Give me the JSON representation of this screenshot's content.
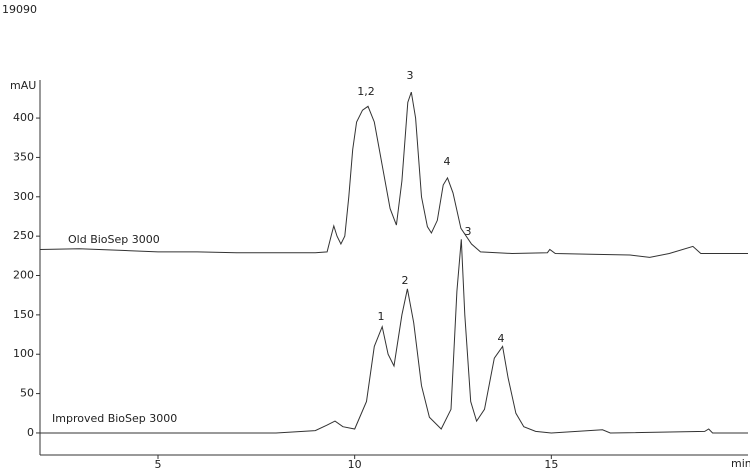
{
  "chart_data": {
    "type": "line",
    "title": "19090",
    "y_label": "mAU",
    "x_label": "min",
    "series": [
      {
        "name": "Old BioSep 3000",
        "color": "#333333",
        "x": [
          2.0,
          3,
          4,
          5,
          6,
          7,
          8,
          9,
          9.3,
          9.4,
          9.47,
          9.55,
          9.65,
          9.75,
          9.85,
          9.95,
          10.05,
          10.2,
          10.34,
          10.5,
          10.7,
          10.9,
          11.06,
          11.2,
          11.35,
          11.44,
          11.55,
          11.7,
          11.85,
          11.95,
          12.1,
          12.25,
          12.36,
          12.5,
          12.7,
          12.97,
          13.2,
          14,
          14.9,
          14.96,
          15.1,
          16,
          17,
          17.5,
          18,
          18.6,
          18.8,
          20
        ],
        "values": [
          233,
          234,
          232,
          230,
          230,
          229,
          229,
          229,
          230,
          250,
          263,
          250,
          240,
          250,
          300,
          360,
          395,
          410,
          415,
          395,
          340,
          285,
          264,
          320,
          420,
          433,
          400,
          300,
          262,
          254,
          270,
          315,
          324,
          305,
          260,
          240,
          230,
          228,
          229,
          233,
          228,
          227,
          226,
          223,
          228,
          237,
          228,
          228
        ]
      },
      {
        "name": "Improved BioSep 3000",
        "color": "#333333",
        "x": [
          2,
          8,
          9,
          9.3,
          9.5,
          9.7,
          10,
          10.3,
          10.5,
          10.7,
          10.85,
          11.0,
          11.2,
          11.34,
          11.5,
          11.7,
          11.9,
          12.2,
          12.45,
          12.6,
          12.71,
          12.8,
          12.95,
          13.1,
          13.3,
          13.55,
          13.76,
          13.9,
          14.1,
          14.3,
          14.6,
          15,
          16.3,
          16.5,
          18.9,
          19,
          19.1,
          20
        ],
        "values": [
          0,
          0,
          3,
          10,
          15,
          8,
          5,
          40,
          110,
          135,
          100,
          85,
          150,
          183,
          140,
          60,
          20,
          5,
          30,
          180,
          246,
          150,
          40,
          15,
          30,
          95,
          110,
          70,
          25,
          8,
          2,
          0,
          4,
          0,
          2,
          5,
          0,
          0
        ]
      }
    ],
    "annotations": [
      "1,2",
      "3",
      "4",
      "1",
      "2",
      "3",
      "4"
    ],
    "xlim": [
      2,
      20
    ],
    "xticks": [
      5,
      10,
      15
    ],
    "ylim": [
      -28,
      442
    ],
    "yticks": [
      0,
      50,
      100,
      150,
      200,
      250,
      300,
      350,
      400
    ]
  }
}
